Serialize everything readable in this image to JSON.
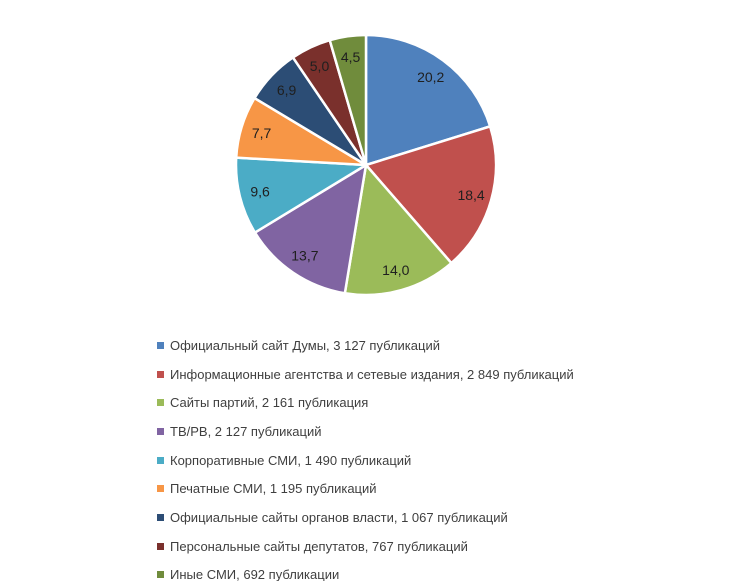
{
  "page": {
    "background_color": "#ffffff",
    "label_color": "#1f1f1f",
    "legend_text_color": "#3f3f3f"
  },
  "chart_data": {
    "type": "pie",
    "title": "",
    "unit": "percent",
    "start_angle_deg": 0,
    "direction": "clockwise",
    "legend_position": "bottom-left",
    "slices": [
      {
        "label": "Официальный сайт Думы",
        "publications_text": "3 127 публикаций",
        "value": 20.2,
        "value_label": "20,2",
        "color": "#4F81BD",
        "legend_text": "Официальный сайт Думы, 3 127 публикаций"
      },
      {
        "label": "Информационные агентства и сетевые издания",
        "publications_text": "2 849 публикаций",
        "value": 18.4,
        "value_label": "18,4",
        "color": "#C0504D",
        "legend_text": "Информационные агентства и сетевые издания, 2 849 публикаций"
      },
      {
        "label": "Сайты партий",
        "publications_text": "2 161 публикация",
        "value": 14.0,
        "value_label": "14,0",
        "color": "#9BBB59",
        "legend_text": "Сайты партий, 2 161 публикация"
      },
      {
        "label": "ТВ/РВ",
        "publications_text": "2 127 публикаций",
        "value": 13.7,
        "value_label": "13,7",
        "color": "#8064A2",
        "legend_text": "ТВ/РВ, 2 127 публикаций"
      },
      {
        "label": "Корпоративные СМИ",
        "publications_text": "1 490 публикаций",
        "value": 9.6,
        "value_label": "9,6",
        "color": "#4BACC6",
        "legend_text": "Корпоративные СМИ, 1 490 публикаций"
      },
      {
        "label": "Печатные СМИ",
        "publications_text": "1 195 публикаций",
        "value": 7.7,
        "value_label": "7,7",
        "color": "#F79646",
        "legend_text": "Печатные СМИ, 1 195 публикаций"
      },
      {
        "label": "Официальные сайты органов власти",
        "publications_text": "1 067 публикаций",
        "value": 6.9,
        "value_label": "6,9",
        "color": "#2C4D75",
        "legend_text": "Официальные сайты органов власти, 1 067 публикаций"
      },
      {
        "label": "Персональные сайты депутатов",
        "publications_text": "767 публикаций",
        "value": 5.0,
        "value_label": "5,0",
        "color": "#7A302C",
        "legend_text": "Персональные сайты депутатов, 767 публикаций"
      },
      {
        "label": "Иные СМИ",
        "publications_text": "692 публикации",
        "value": 4.5,
        "value_label": "4,5",
        "color": "#708C3C",
        "legend_text": "Иные СМИ, 692 публикации"
      }
    ]
  }
}
